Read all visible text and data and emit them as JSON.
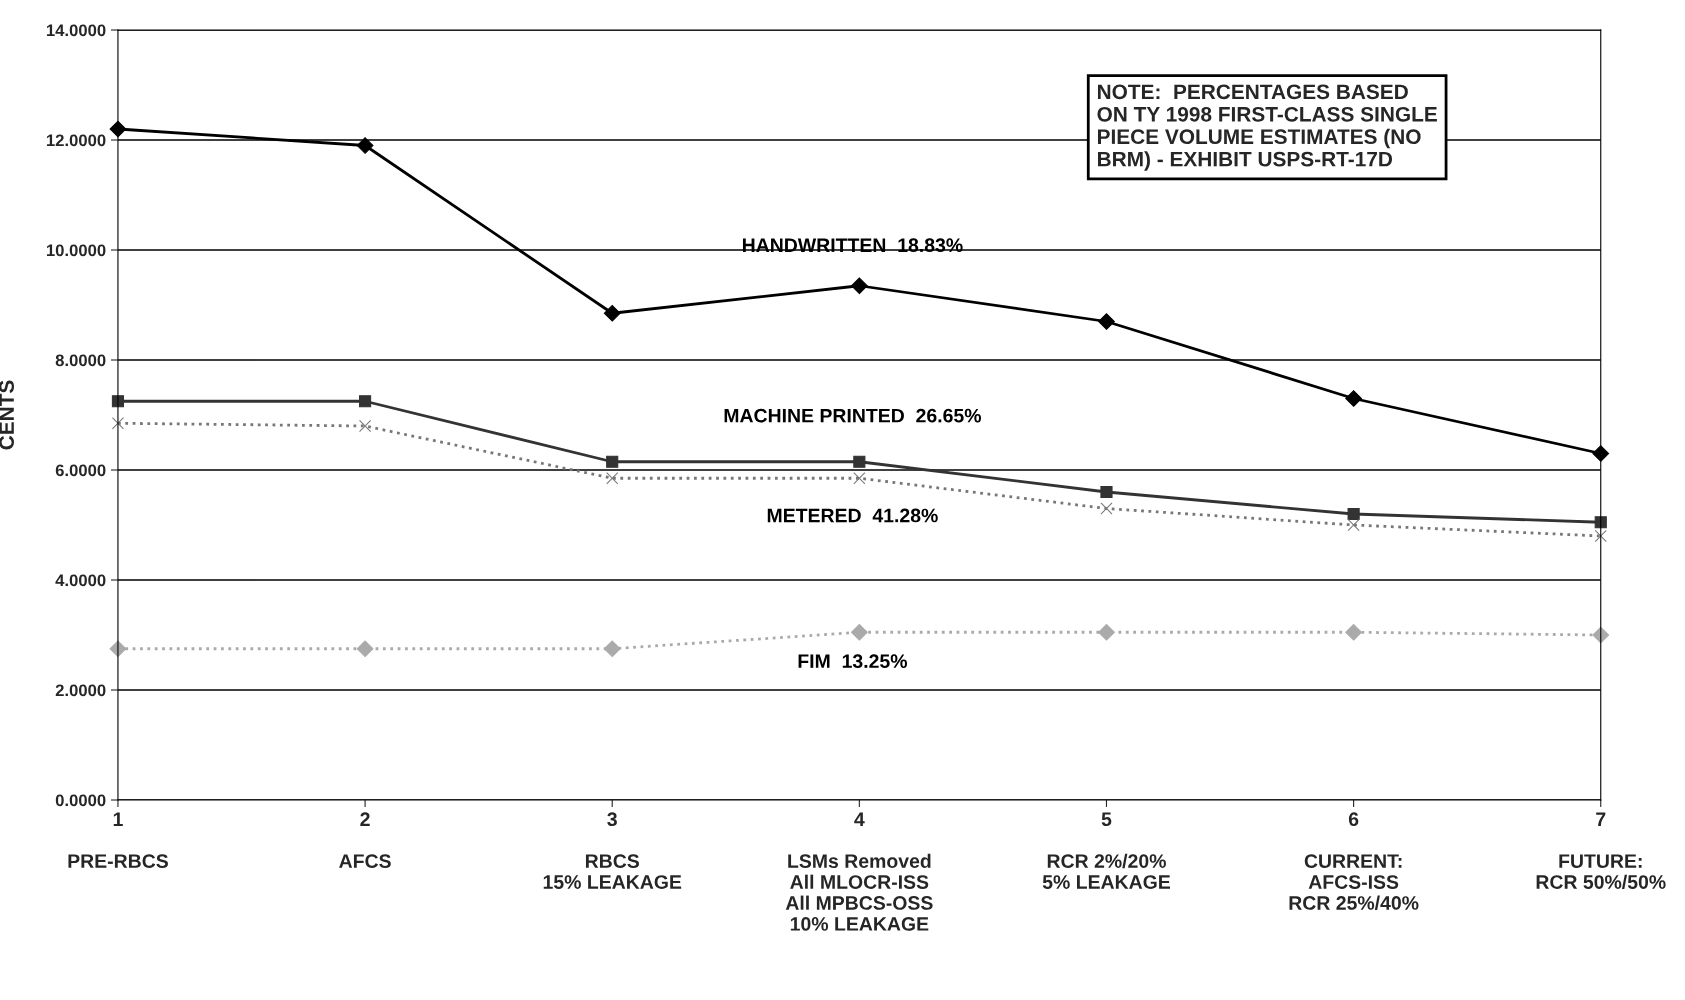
{
  "chart_data": {
    "type": "line",
    "ylabel": "CENTS",
    "categories": [
      "1\n\nPRE-RBCS",
      "2\n\nAFCS",
      "3\n\nRBCS\n15% LEAKAGE",
      "4\n\nLSMs Removed\nAll MLOCR-ISS\nAll MPBCS-OSS\n10% LEAKAGE",
      "5\n\nRCR 2%/20%\n5% LEAKAGE",
      "6\n\nCURRENT:\nAFCS-ISS\nRCR 25%/40%",
      "7\n\nFUTURE:\nRCR 50%/50%"
    ],
    "ylim": [
      0,
      14
    ],
    "yticks": [
      {
        "value": 0,
        "label": "0.0000"
      },
      {
        "value": 2,
        "label": "2.0000"
      },
      {
        "value": 4,
        "label": "4.0000"
      },
      {
        "value": 6,
        "label": "6.0000"
      },
      {
        "value": 8,
        "label": "8.0000"
      },
      {
        "value": 10,
        "label": "10.0000"
      },
      {
        "value": 12,
        "label": "12.0000"
      },
      {
        "value": 14,
        "label": "14.0000"
      }
    ],
    "grid": "y",
    "legend": false,
    "series": [
      {
        "name": "HANDWRITTEN  18.83%",
        "color": "#000000",
        "marker": "diamond",
        "line_style": "solid",
        "values": [
          12.2,
          11.9,
          8.85,
          9.35,
          8.7,
          7.3,
          6.3
        ]
      },
      {
        "name": "MACHINE PRINTED  26.65%",
        "color": "#333333",
        "marker": "square",
        "line_style": "solid",
        "values": [
          7.25,
          7.25,
          6.15,
          6.15,
          5.6,
          5.2,
          5.05
        ]
      },
      {
        "name": "METERED  41.28%",
        "color": "#777777",
        "marker": "cross",
        "line_style": "dotted",
        "values": [
          6.85,
          6.8,
          5.85,
          5.85,
          5.3,
          5.0,
          4.8
        ]
      },
      {
        "name": "FIM  13.25%",
        "color": "#aaaaaa",
        "marker": "diamond",
        "line_style": "dotted",
        "values": [
          2.75,
          2.75,
          2.75,
          3.05,
          3.05,
          3.05,
          3.0
        ]
      }
    ],
    "annotations": [
      "NOTE:  PERCENTAGES BASED\nON TY 1998 FIRST-CLASS SINGLE\nPIECE VOLUME ESTIMATES (NO\nBRM) - EXHIBIT USPS-RT-17D"
    ]
  }
}
